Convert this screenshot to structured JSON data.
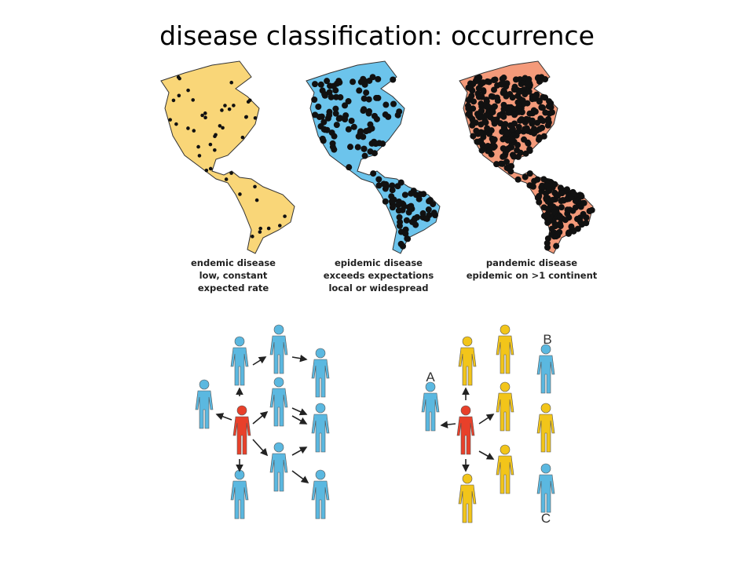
{
  "title": "disease classification: occurrence",
  "maps": [
    {
      "caption": [
        "endemic disease",
        "low, constant",
        "expected rate"
      ]
    },
    {
      "caption": [
        "epidemic disease",
        "exceeds expectations",
        "local or widespread"
      ]
    },
    {
      "caption": [
        "pandemic disease",
        "epidemic on >1 continent"
      ]
    }
  ],
  "diagram": {
    "labels": [
      "A",
      "B",
      "C"
    ]
  }
}
